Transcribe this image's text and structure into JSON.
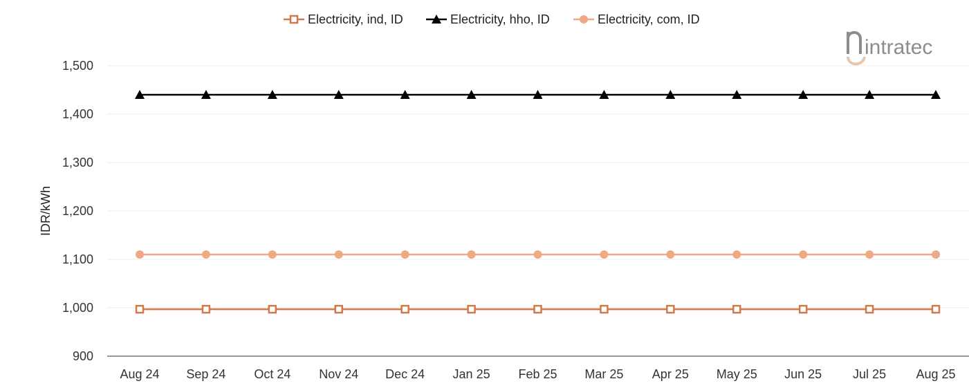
{
  "colors": {
    "ind": "#d07a4a",
    "hho": "#000000",
    "com": "#eea986",
    "grid": "#eeeeee",
    "axis": "#333333",
    "logo_gray": "#8c8c8c",
    "logo_accent": "#e6c6ad"
  },
  "logo": {
    "text": "intratec"
  },
  "chart_data": {
    "type": "line",
    "x": [
      "Aug 24",
      "Sep 24",
      "Oct 24",
      "Nov 24",
      "Dec 24",
      "Jan 25",
      "Feb 25",
      "Mar 25",
      "Apr 25",
      "May 25",
      "Jun 25",
      "Jul 25",
      "Aug 25"
    ],
    "series": [
      {
        "name": "Electricity, ind, ID",
        "marker": "hollow-square",
        "color": "#d07a4a",
        "values": [
          997,
          997,
          997,
          997,
          997,
          997,
          997,
          997,
          997,
          997,
          997,
          997,
          997
        ]
      },
      {
        "name": "Electricity, hho, ID",
        "marker": "filled-triangle",
        "color": "#000000",
        "values": [
          1440,
          1440,
          1440,
          1440,
          1440,
          1440,
          1440,
          1440,
          1440,
          1440,
          1440,
          1440,
          1440
        ]
      },
      {
        "name": "Electricity, com, ID",
        "marker": "filled-circle",
        "color": "#eea986",
        "values": [
          1110,
          1110,
          1110,
          1110,
          1110,
          1110,
          1110,
          1110,
          1110,
          1110,
          1110,
          1110,
          1110
        ]
      }
    ],
    "title": "",
    "xlabel": "",
    "ylabel": "IDR/kWh",
    "ylim": [
      900,
      1500
    ],
    "yticks": [
      900,
      1000,
      1100,
      1200,
      1300,
      1400,
      1500
    ],
    "ytick_labels": [
      "900",
      "1,000",
      "1,100",
      "1,200",
      "1,300",
      "1,400",
      "1,500"
    ],
    "grid": true,
    "legend_position": "top-center"
  }
}
